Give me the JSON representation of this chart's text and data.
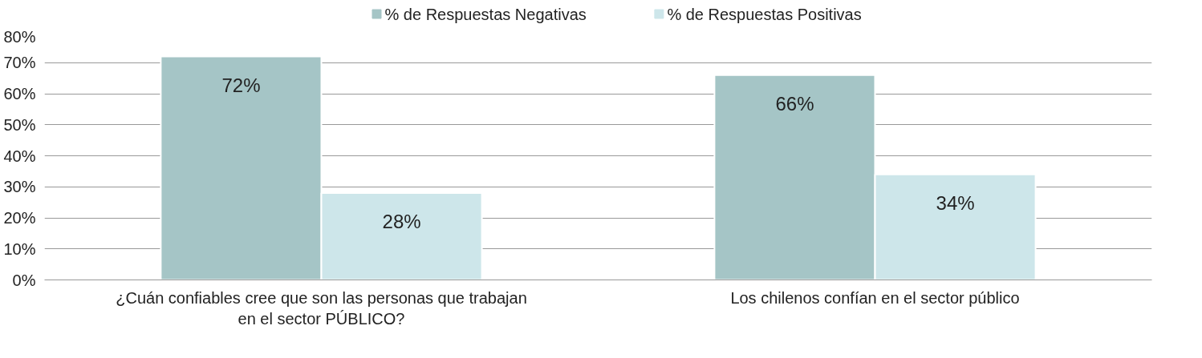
{
  "chart_data": {
    "type": "bar",
    "categories": [
      "¿Cuán confiables cree que son las personas que trabajan en el sector PÚBLICO?",
      "Los chilenos confían en el sector público"
    ],
    "series": [
      {
        "name": "% de Respuestas Negativas",
        "color": "#a5c5c6",
        "values": [
          72,
          66
        ],
        "value_labels": [
          "72%",
          "66%"
        ]
      },
      {
        "name": "% de Respuestas Positivas",
        "color": "#cde6ea",
        "values": [
          28,
          34
        ],
        "value_labels": [
          "28%",
          "34%"
        ]
      }
    ],
    "ylim": [
      0,
      80
    ],
    "yticks": [
      {
        "value": 0,
        "label": "0%"
      },
      {
        "value": 10,
        "label": "10%"
      },
      {
        "value": 20,
        "label": "20%"
      },
      {
        "value": 30,
        "label": "30%"
      },
      {
        "value": 40,
        "label": "40%"
      },
      {
        "value": 50,
        "label": "50%"
      },
      {
        "value": 60,
        "label": "60%"
      },
      {
        "value": 70,
        "label": "70%"
      },
      {
        "value": 80,
        "label": "80%"
      }
    ],
    "grid": "y",
    "legend": "top"
  }
}
